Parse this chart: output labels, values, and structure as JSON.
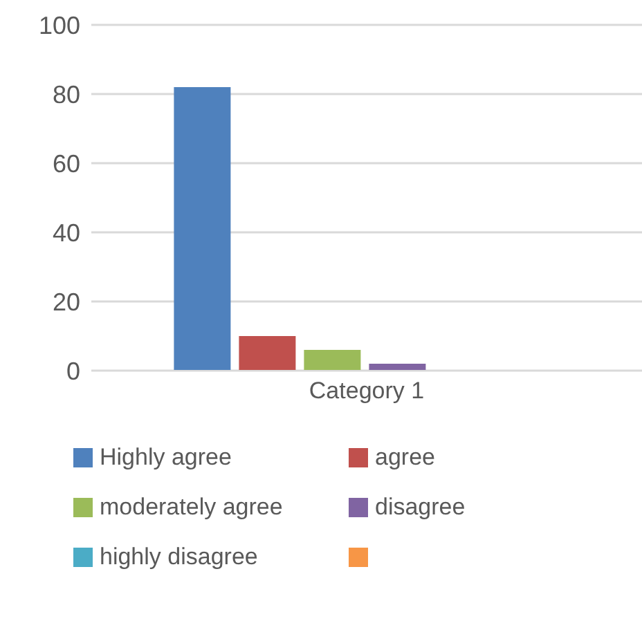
{
  "chart_data": {
    "type": "bar",
    "categories": [
      "Category 1"
    ],
    "series": [
      {
        "name": "Highly agree",
        "color": "#4f81bd",
        "values": [
          82
        ]
      },
      {
        "name": "agree",
        "color": "#c0504d",
        "values": [
          10
        ]
      },
      {
        "name": "moderately agree",
        "color": "#9bbb59",
        "values": [
          6
        ]
      },
      {
        "name": "disagree",
        "color": "#8064a2",
        "values": [
          2
        ]
      },
      {
        "name": "highly disagree",
        "color": "#4bacc6",
        "values": [
          0
        ]
      },
      {
        "color": "#f79646",
        "values": [
          0
        ]
      }
    ],
    "ylim": [
      0,
      100
    ],
    "yticks": [
      0,
      20,
      40,
      60,
      80,
      100
    ],
    "grid": "y",
    "legend": "bottom"
  }
}
